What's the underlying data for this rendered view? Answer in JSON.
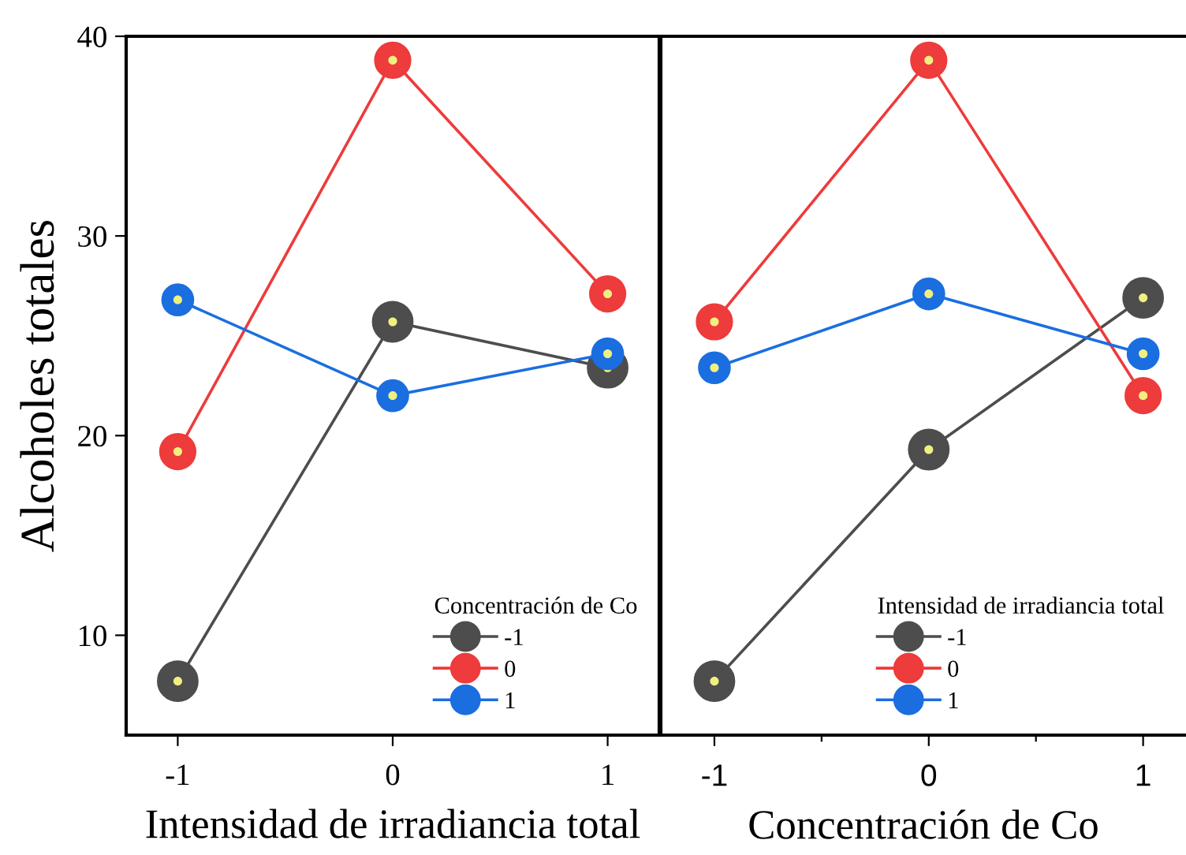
{
  "chart_data": [
    {
      "type": "line",
      "xlabel": "Intensidad de irradiancia total",
      "ylabel": "Alcoholes totales",
      "legend_title": "Concentración de Co",
      "legend": "bottom right",
      "marker": "circle",
      "line_style": "solid",
      "x": [
        -1,
        0,
        1
      ],
      "xlim": [
        -1.24,
        1.24
      ],
      "xticks": [
        -1,
        0,
        1
      ],
      "ylim": [
        5,
        40
      ],
      "yticks": [
        10,
        20,
        30,
        40
      ],
      "series": [
        {
          "name": "-1",
          "color": "#4d4d4d",
          "values": [
            7.7,
            25.7,
            23.4
          ]
        },
        {
          "name": "0",
          "color": "#ee3b3b",
          "values": [
            19.2,
            38.8,
            27.1
          ]
        },
        {
          "name": "1",
          "color": "#1a6ee0",
          "values": [
            26.8,
            22.0,
            24.1
          ]
        }
      ]
    },
    {
      "type": "line",
      "xlabel": "Concentración de Co",
      "legend_title": "Intensidad de irradiancia total",
      "legend": "bottom right",
      "marker": "circle",
      "line_style": "solid",
      "tick_labels": "x",
      "x": [
        -1,
        0,
        1
      ],
      "xlim": [
        -1.25,
        1.2
      ],
      "xticks": [
        -1,
        {
          "value": -0.5,
          "label": null
        },
        0,
        {
          "value": 0.5,
          "label": null
        },
        1
      ],
      "ylim": [
        5,
        40
      ],
      "series": [
        {
          "name": "-1",
          "color": "#4d4d4d",
          "values": [
            7.7,
            19.3,
            26.9
          ]
        },
        {
          "name": "0",
          "color": "#ee3b3b",
          "values": [
            25.7,
            38.8,
            22.0
          ]
        },
        {
          "name": "1",
          "color": "#1a6ee0",
          "values": [
            23.4,
            27.1,
            24.1
          ]
        }
      ]
    }
  ]
}
